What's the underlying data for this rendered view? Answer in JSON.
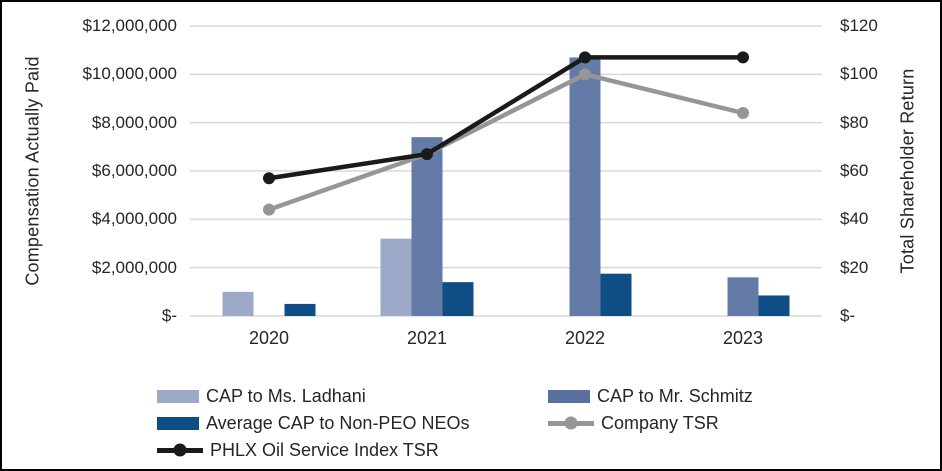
{
  "chart_data": {
    "type": "combo-bar-line",
    "categories": [
      "2020",
      "2021",
      "2022",
      "2023"
    ],
    "bar_series": [
      {
        "name": "CAP to Ms. Ladhani",
        "color": "#9DA9C9",
        "axis": "left",
        "values": [
          1000000,
          3200000,
          null,
          null
        ]
      },
      {
        "name": "CAP to Mr. Schmitz",
        "color": "#58709F",
        "axis": "left",
        "values": [
          null,
          7400000,
          10700000,
          1600000
        ]
      },
      {
        "name": "Average CAP to Non-PEO NEOs",
        "color": "#0F4E85",
        "axis": "left",
        "values": [
          500000,
          1400000,
          1750000,
          850000
        ]
      }
    ],
    "line_series": [
      {
        "name": "Company TSR",
        "color": "#969696",
        "axis": "right",
        "values": [
          44,
          67,
          100,
          84
        ]
      },
      {
        "name": "PHLX Oil Service Index TSR",
        "color": "#1A1A1A",
        "axis": "right",
        "values": [
          57,
          67,
          107,
          107
        ]
      }
    ],
    "left_axis": {
      "title": "Compensation Actually Paid",
      "ticks": [
        "$-",
        "$2,000,000",
        "$4,000,000",
        "$6,000,000",
        "$8,000,000",
        "$10,000,000",
        "$12,000,000"
      ],
      "tick_values": [
        0,
        2000000,
        4000000,
        6000000,
        8000000,
        10000000,
        12000000
      ],
      "range": [
        0,
        12000000
      ]
    },
    "right_axis": {
      "title": "Total Shareholder Return",
      "ticks": [
        "$-",
        "$20",
        "$40",
        "$60",
        "$80",
        "$100",
        "$120"
      ],
      "tick_values": [
        0,
        20,
        40,
        60,
        80,
        100,
        120
      ],
      "range": [
        0,
        120
      ]
    },
    "grid": {
      "show": true,
      "color": "#D9D9D9"
    },
    "legend_position": "bottom-two-columns",
    "background": "#FFFFFF",
    "border_color": "#000000",
    "text_color": "#262626"
  }
}
